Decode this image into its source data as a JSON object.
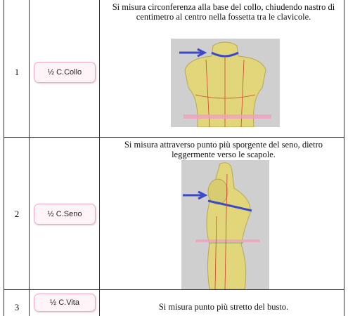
{
  "table": {
    "rows": [
      {
        "number": "1",
        "label": "½ C.Collo",
        "description": "Si misura circonferenza alla base del collo, chiudendo nastro di centimetro al centro nella fossetta tra le clavicole."
      },
      {
        "number": "2",
        "label": "½ C.Seno",
        "description": "Si misura attraverso punto più sporgente del seno, dietro leggermente verso le scapole."
      },
      {
        "number": "3",
        "label": "½ C.Vita",
        "description": "Si misura punto più stretto del busto."
      }
    ]
  }
}
